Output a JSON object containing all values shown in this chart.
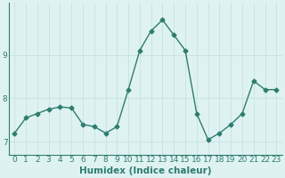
{
  "x": [
    0,
    1,
    2,
    3,
    4,
    5,
    6,
    7,
    8,
    9,
    10,
    11,
    12,
    13,
    14,
    15,
    16,
    17,
    18,
    19,
    20,
    21,
    22,
    23
  ],
  "y": [
    7.2,
    7.55,
    7.65,
    7.75,
    7.8,
    7.78,
    7.4,
    7.35,
    7.2,
    7.35,
    8.2,
    9.1,
    9.55,
    9.8,
    9.45,
    9.1,
    7.65,
    7.05,
    7.2,
    7.4,
    7.65,
    8.4,
    8.2,
    8.2
  ],
  "xlabel": "Humidex (Indice chaleur)",
  "yticks": [
    7,
    8,
    9
  ],
  "ylim": [
    6.7,
    10.2
  ],
  "xlim": [
    -0.5,
    23.5
  ],
  "line_color": "#2e7d6e",
  "marker": "D",
  "markersize": 2.5,
  "bg_color": "#dff2f2",
  "grid_color": "#c0dede",
  "tick_fontsize": 6.5,
  "xlabel_fontsize": 7.5,
  "linewidth": 1.0
}
